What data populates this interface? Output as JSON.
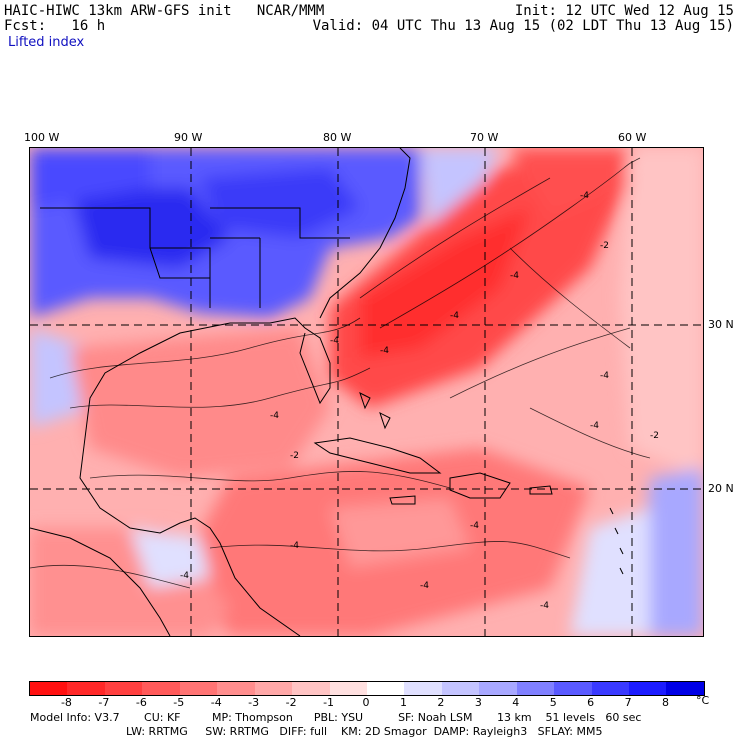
{
  "header": {
    "title": "HAIC-HIWC 13km ARW-GFS init   NCAR/MMM",
    "init": "Init: 12 UTC Wed 12 Aug 15",
    "fcst": "Fcst:   16 h",
    "valid": "Valid: 04 UTC Thu 13 Aug 15 (02 LDT Thu 13 Aug 15)",
    "field": "Lifted index"
  },
  "axes": {
    "lon_labels": [
      "100 W",
      "90 W",
      "80 W",
      "70 W",
      "60 W"
    ],
    "lat_labels": [
      "30 N",
      "20 N"
    ]
  },
  "colorbar": {
    "labels": [
      "-8",
      "-7",
      "-6",
      "-5",
      "-4",
      "-3",
      "-2",
      "-1",
      "0",
      "1",
      "2",
      "3",
      "4",
      "5",
      "6",
      "7",
      "8"
    ],
    "unit": "°C",
    "colors": [
      "#ff1010",
      "#ff2828",
      "#ff4040",
      "#ff5a5a",
      "#ff7474",
      "#ff8e8e",
      "#ffa8a8",
      "#ffc4c4",
      "#ffe0e0",
      "#ffffff",
      "#e0e0ff",
      "#c4c4ff",
      "#a8a8ff",
      "#8080ff",
      "#5a5aff",
      "#3a3aff",
      "#1c1cff",
      "#0000e6"
    ]
  },
  "model_info": {
    "line1": "Model Info: V3.7       CU: KF         MP: Thompson      PBL: YSU          SF: Noah LSM       13 km    51 levels   60 sec",
    "line2": "LW: RRTMG     SW: RRTMG   DIFF: full    KM: 2D Smagor  DAMP: Rayleigh3   SFLAY: MM5"
  },
  "contour_labels": [
    "-4",
    "-2",
    "-4",
    "-4",
    "-2",
    "-4",
    "-4",
    "-4",
    "-4",
    "-4",
    "-4",
    "-4",
    "-4",
    "-4",
    "-2",
    "-4"
  ],
  "colors": {
    "land_outline": "#000000",
    "grid": "#000000"
  }
}
